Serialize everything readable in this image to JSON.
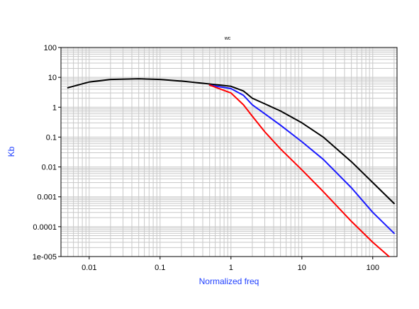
{
  "chart_data": {
    "type": "line",
    "title": "wc",
    "xlabel": "Normalized freq",
    "ylabel": "Kb",
    "x_scale": "log",
    "y_scale": "log",
    "xlim": [
      0.004,
      220
    ],
    "ylim": [
      1e-05,
      100
    ],
    "grid": true,
    "x_ticks": [
      {
        "value": 0.01,
        "label": "0.01"
      },
      {
        "value": 0.1,
        "label": "0.1"
      },
      {
        "value": 1,
        "label": "1"
      },
      {
        "value": 10,
        "label": "10"
      },
      {
        "value": 100,
        "label": "100"
      }
    ],
    "y_ticks": [
      {
        "value": 100,
        "label": "100"
      },
      {
        "value": 10,
        "label": "10"
      },
      {
        "value": 1,
        "label": "1"
      },
      {
        "value": 0.1,
        "label": "0.1"
      },
      {
        "value": 0.01,
        "label": "0.01"
      },
      {
        "value": 0.001,
        "label": "0.001"
      },
      {
        "value": 0.0001,
        "label": "0.0001"
      },
      {
        "value": 1e-05,
        "label": "1e-005"
      }
    ],
    "colors": {
      "black": "#000000",
      "blue": "#1a1aff",
      "red": "#ff0000",
      "axis_text": "#1f3fff",
      "grid": "#c8c8c8"
    },
    "series": [
      {
        "color": "#000000",
        "x": [
          0.005,
          0.01,
          0.02,
          0.05,
          0.1,
          0.2,
          0.5,
          1,
          1.5,
          2,
          3,
          5,
          10,
          20,
          50,
          100,
          200
        ],
        "y": [
          4.5,
          7,
          8.5,
          9,
          8.5,
          7.5,
          6,
          5,
          3.5,
          2,
          1.3,
          0.75,
          0.3,
          0.1,
          0.015,
          0.003,
          0.0006
        ]
      },
      {
        "color": "#1a1aff",
        "x": [
          0.5,
          1,
          1.5,
          2,
          3,
          5,
          10,
          20,
          50,
          100,
          200
        ],
        "y": [
          5.5,
          4.2,
          2.5,
          1.2,
          0.6,
          0.25,
          0.07,
          0.018,
          0.002,
          0.0003,
          6e-05
        ]
      },
      {
        "color": "#ff0000",
        "x": [
          0.5,
          1,
          1.5,
          2,
          3,
          5,
          10,
          20,
          50,
          100,
          170
        ],
        "y": [
          5.5,
          3,
          1.2,
          0.5,
          0.15,
          0.04,
          0.008,
          0.0015,
          0.00015,
          3e-05,
          1e-05
        ]
      }
    ]
  }
}
